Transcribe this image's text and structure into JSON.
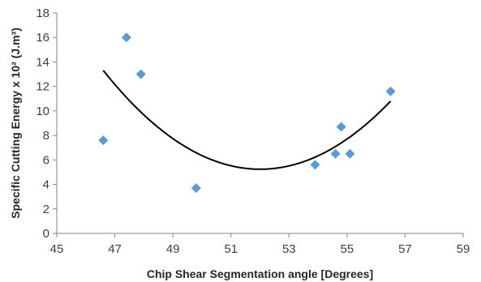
{
  "chart_data": {
    "type": "scatter",
    "title": "",
    "xlabel": "Chip Shear Segmentation angle [Degrees]",
    "ylabel": "Specific Cutting Energy x 10² (J.m³)",
    "xlim": [
      45,
      59
    ],
    "ylim": [
      0,
      18
    ],
    "x_ticks": [
      45,
      47,
      49,
      51,
      53,
      55,
      57,
      59
    ],
    "y_ticks": [
      0,
      2,
      4,
      6,
      8,
      10,
      12,
      14,
      16,
      18
    ],
    "grid": false,
    "legend": "none",
    "marker": "diamond",
    "marker_color": "#5b9bd5",
    "trendline": {
      "type": "polynomial",
      "order": 2,
      "color": "#000000",
      "x_range": [
        46.6,
        56.5
      ],
      "curve": [
        {
          "x": 46.6,
          "y": 13.2
        },
        {
          "x": 48.0,
          "y": 9.8
        },
        {
          "x": 50.0,
          "y": 6.5
        },
        {
          "x": 52.0,
          "y": 5.1
        },
        {
          "x": 53.0,
          "y": 5.4
        },
        {
          "x": 55.0,
          "y": 7.8
        },
        {
          "x": 56.5,
          "y": 10.8
        }
      ]
    },
    "points": [
      {
        "x": 46.6,
        "y": 7.6
      },
      {
        "x": 47.4,
        "y": 16.0
      },
      {
        "x": 47.9,
        "y": 13.0
      },
      {
        "x": 49.8,
        "y": 3.7
      },
      {
        "x": 53.9,
        "y": 5.6
      },
      {
        "x": 54.6,
        "y": 6.5
      },
      {
        "x": 54.8,
        "y": 8.7
      },
      {
        "x": 55.1,
        "y": 6.5
      },
      {
        "x": 56.5,
        "y": 11.6
      }
    ]
  }
}
